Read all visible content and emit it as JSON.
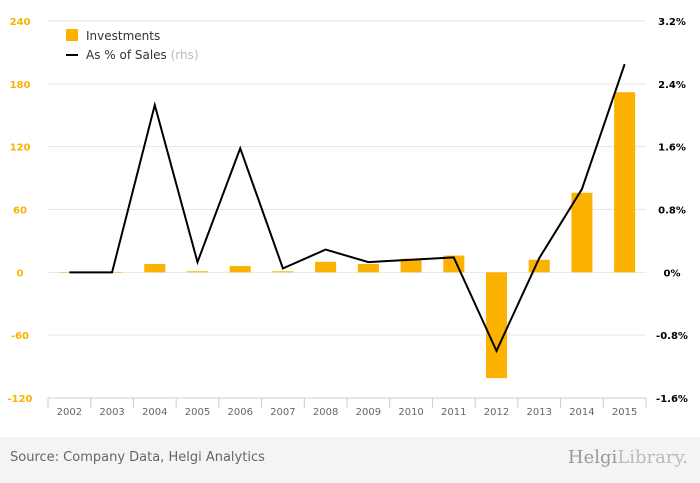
{
  "chart_data": {
    "type": "bar+line",
    "categories": [
      "2002",
      "2003",
      "2004",
      "2005",
      "2006",
      "2007",
      "2008",
      "2009",
      "2010",
      "2011",
      "2012",
      "2013",
      "2014",
      "2015"
    ],
    "series": [
      {
        "name": "Investments",
        "type": "bar",
        "axis": "left",
        "color": "#fbb200",
        "values": [
          0,
          0,
          8,
          1,
          6,
          1,
          10,
          8,
          13,
          16,
          -101,
          12,
          76,
          172
        ]
      },
      {
        "name": "As % of Sales",
        "suffix": " (rhs)",
        "type": "line",
        "axis": "right",
        "color": "#000000",
        "values": [
          0,
          0,
          2.13,
          0.13,
          1.58,
          0.05,
          0.29,
          0.13,
          0.16,
          0.19,
          -1.0,
          0.18,
          1.06,
          2.65
        ]
      }
    ],
    "left_axis": {
      "ylim": [
        -120,
        240
      ],
      "ticks": [
        "240",
        "180",
        "120",
        "60",
        "0",
        "-60",
        "-120"
      ],
      "tick_values": [
        240,
        180,
        120,
        60,
        0,
        -60,
        -120
      ],
      "color": "#fbb200"
    },
    "right_axis": {
      "ylim": [
        -1.6,
        3.2
      ],
      "ticks": [
        "3.2%",
        "2.4%",
        "1.6%",
        "0.8%",
        "0%",
        "-0.8%",
        "-1.6%"
      ]
    },
    "grid": true,
    "legend": "top-left"
  },
  "footer": {
    "source": "Source: Company Data, Helgi Analytics",
    "logo_main": "Helgi",
    "logo_sub": "Library."
  }
}
